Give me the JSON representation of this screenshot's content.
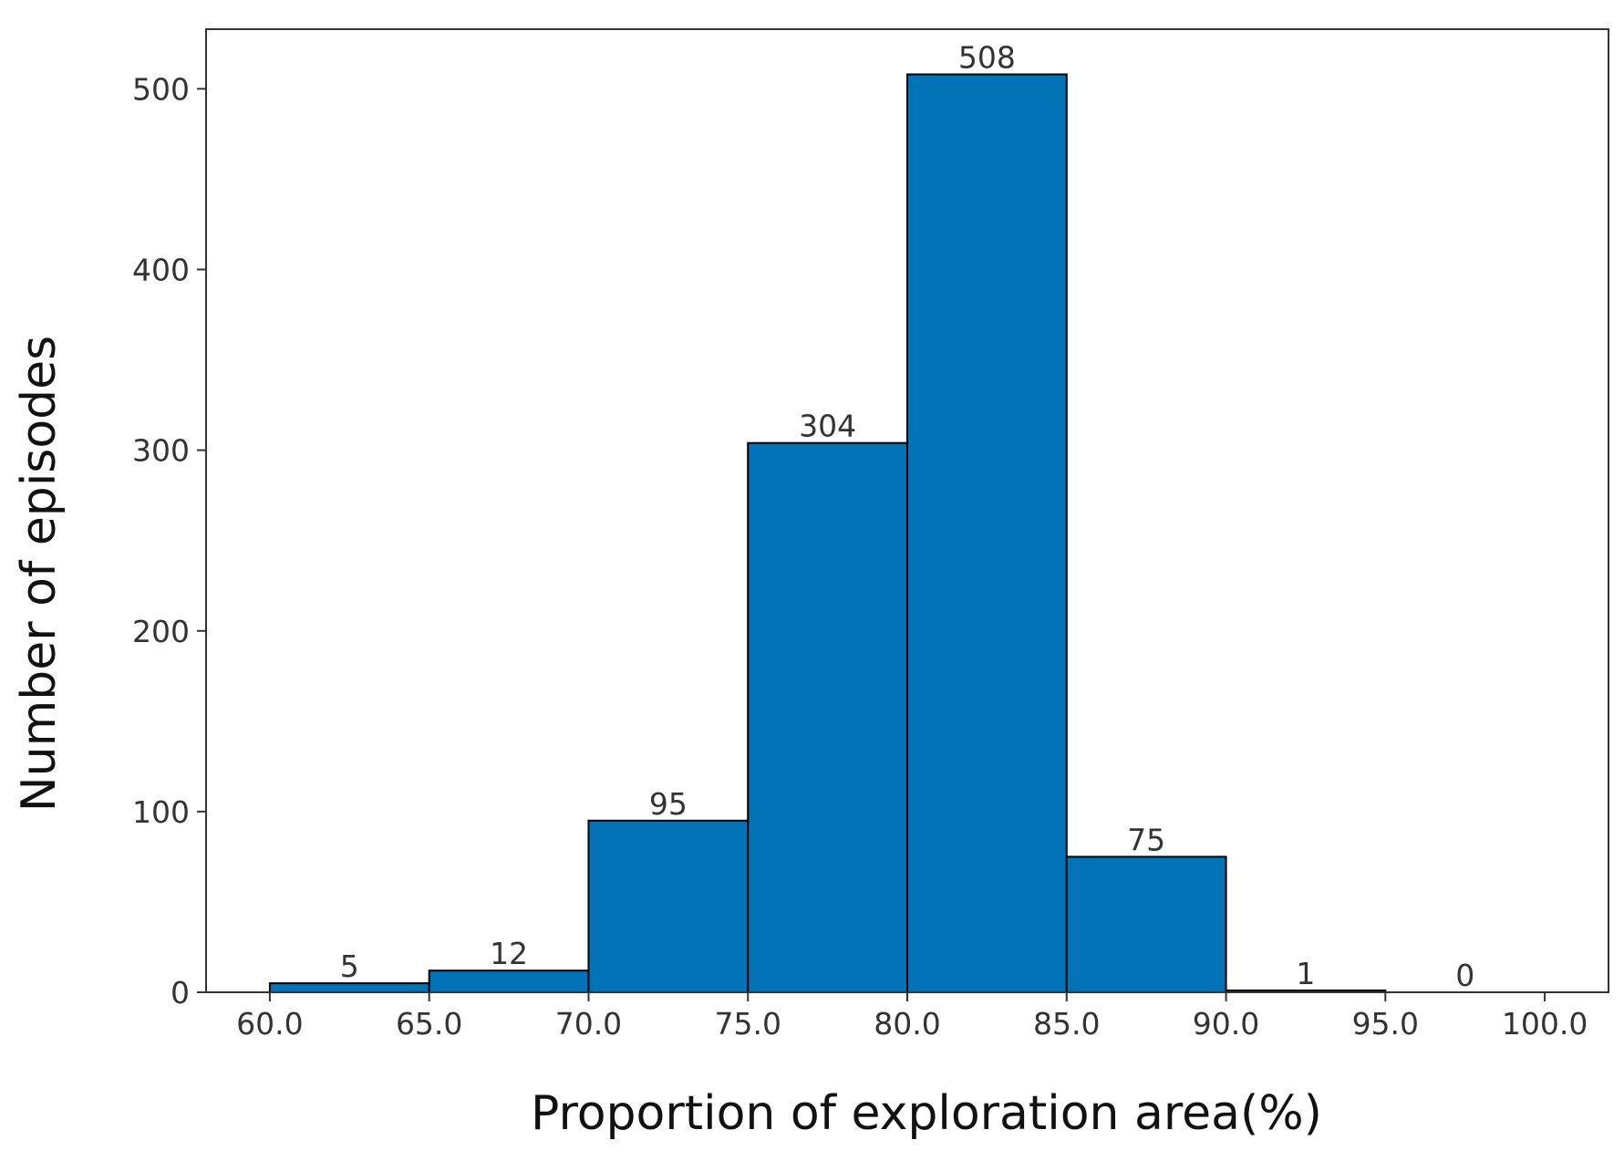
{
  "chart_data": {
    "type": "bar",
    "bins": [
      [
        60.0,
        65.0
      ],
      [
        65.0,
        70.0
      ],
      [
        70.0,
        75.0
      ],
      [
        75.0,
        80.0
      ],
      [
        80.0,
        85.0
      ],
      [
        85.0,
        90.0
      ],
      [
        90.0,
        95.0
      ],
      [
        95.0,
        100.0
      ]
    ],
    "values": [
      5,
      12,
      95,
      304,
      508,
      75,
      1,
      0
    ],
    "value_labels": [
      "5",
      "12",
      "95",
      "304",
      "508",
      "75",
      "1",
      "0"
    ],
    "xticks": [
      60.0,
      65.0,
      70.0,
      75.0,
      80.0,
      85.0,
      90.0,
      95.0,
      100.0
    ],
    "xtick_labels": [
      "60.0",
      "65.0",
      "70.0",
      "75.0",
      "80.0",
      "85.0",
      "90.0",
      "95.0",
      "100.0"
    ],
    "yticks": [
      0,
      100,
      200,
      300,
      400,
      500
    ],
    "ytick_labels": [
      "0",
      "100",
      "200",
      "300",
      "400",
      "500"
    ],
    "xlabel": "Proportion of exploration area(%)",
    "ylabel": "Number of episodes",
    "xlim": [
      58.0,
      102.0
    ],
    "ylim": [
      0,
      533
    ],
    "grid": false,
    "bar_color": "#0173b6",
    "edge_color": "#000000"
  }
}
